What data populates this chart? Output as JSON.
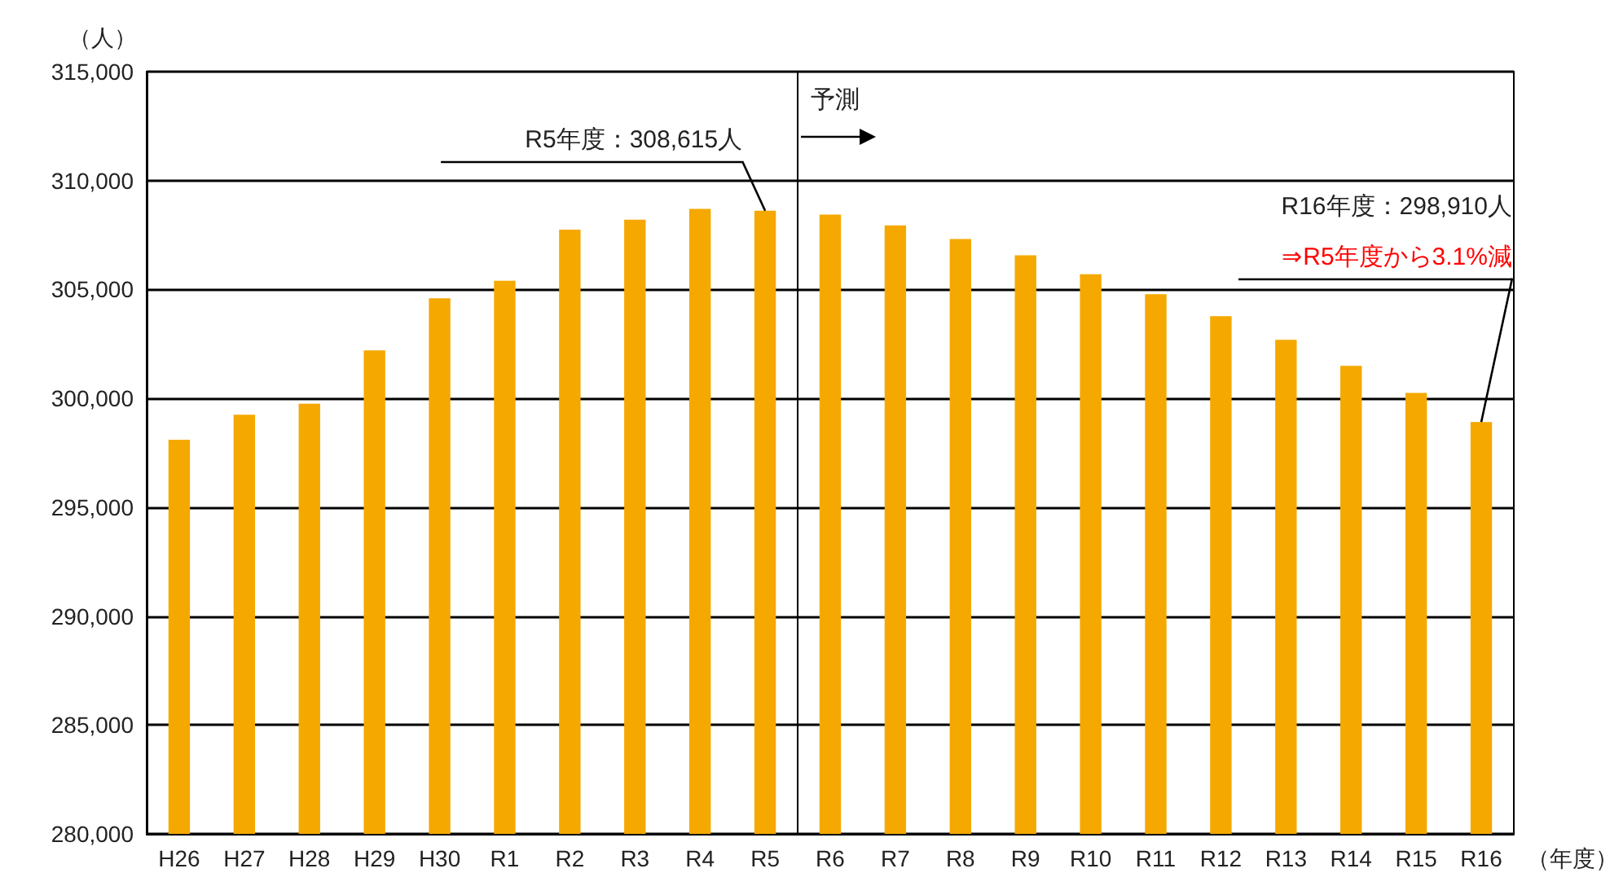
{
  "chart_data": {
    "type": "bar",
    "ylabel": "（人）",
    "xlabel": "（年度）",
    "categories": [
      "H26",
      "H27",
      "H28",
      "H29",
      "H30",
      "R1",
      "R2",
      "R3",
      "R4",
      "R5",
      "R6",
      "R7",
      "R8",
      "R9",
      "R10",
      "R11",
      "R12",
      "R13",
      "R14",
      "R15",
      "R16"
    ],
    "values": [
      298100,
      299250,
      299750,
      302200,
      304600,
      305400,
      307750,
      308200,
      308700,
      308615,
      308440,
      307940,
      307320,
      306570,
      305700,
      304780,
      303770,
      302690,
      301490,
      300250,
      298910
    ],
    "color": "#f5a800",
    "ylim": [
      280000,
      315000
    ],
    "yticks": [
      {
        "value": 280000,
        "label": "280,000"
      },
      {
        "value": 285000,
        "label": "285,000"
      },
      {
        "value": 290000,
        "label": "290,000"
      },
      {
        "value": 295000,
        "label": "295,000"
      },
      {
        "value": 300000,
        "label": "300,000"
      },
      {
        "value": 305000,
        "label": "305,000"
      },
      {
        "value": 310000,
        "label": "310,000"
      },
      {
        "value": 315000,
        "label": "315,000"
      }
    ],
    "grid": "y",
    "ref_lines": [
      {
        "axis": "x",
        "value": "R6",
        "label": "予測"
      }
    ],
    "annotations": [
      {
        "text": "R5年度：308,615人",
        "x": "R5",
        "y": 308615
      },
      "R16年度：298,910人",
      {
        "text": "⇒R5年度から3.1%減",
        "x": "R16",
        "y": 298910
      }
    ]
  }
}
